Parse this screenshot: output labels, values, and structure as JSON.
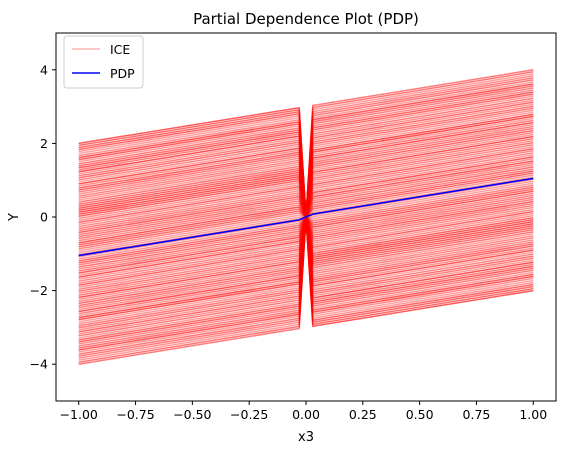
{
  "chart_data": {
    "type": "line",
    "title": "Partial Dependence Plot (PDP)",
    "xlabel": "x3",
    "ylabel": "Y",
    "xlim": [
      -1.1,
      1.1
    ],
    "ylim": [
      -5,
      5
    ],
    "xticks": [
      -1.0,
      -0.75,
      -0.5,
      -0.25,
      0.0,
      0.25,
      0.5,
      0.75,
      1.0
    ],
    "xtick_labels": [
      "−1.00",
      "−0.75",
      "−0.50",
      "−0.25",
      "0.00",
      "0.25",
      "0.50",
      "0.75",
      "1.00"
    ],
    "yticks": [
      -4,
      -2,
      0,
      2,
      4
    ],
    "ytick_labels": [
      "−4",
      "−2",
      "0",
      "2",
      "4"
    ],
    "grid": false,
    "legend_position": "top-left",
    "ice": {
      "name": "ICE",
      "color": "#ff0000",
      "left_segment": {
        "x": [
          -1.0,
          -0.03
        ],
        "intercept_range": [
          -3.0,
          3.0
        ],
        "slope": 1.0
      },
      "right_segment": {
        "x": [
          0.03,
          1.0
        ],
        "intercept_range": [
          -3.0,
          3.0
        ],
        "slope": 1.0
      },
      "jump_x": [
        -0.03,
        0.03
      ],
      "jump_y_at_center": 0.0
    },
    "series": [
      {
        "name": "PDP",
        "color": "#0000ff",
        "x": [
          -1.0,
          -0.03,
          0.03,
          1.0
        ],
        "y": [
          -1.05,
          -0.08,
          0.08,
          1.05
        ]
      }
    ],
    "legend": [
      {
        "label": "ICE",
        "color": "#ffb3b3"
      },
      {
        "label": "PDP",
        "color": "#0000ff"
      }
    ]
  }
}
